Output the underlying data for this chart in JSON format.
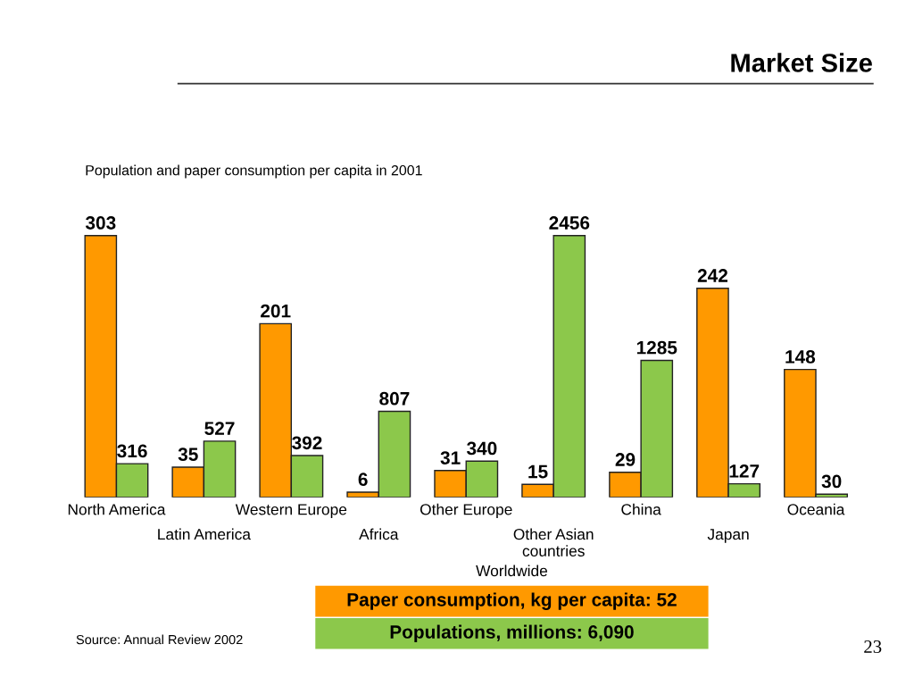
{
  "chart_data": {
    "type": "bar",
    "title": "Market Size",
    "subtitle": "Population and paper consumption per capita in 2001",
    "categories": [
      "North America",
      "Latin America",
      "Western Europe",
      "Africa",
      "Other Europe",
      "Other Asian\ncountries",
      "China",
      "Japan",
      "Oceania"
    ],
    "series": [
      {
        "name": "Paper consumption, kg per capita: 52",
        "color": "#ff9900",
        "values": [
          303,
          35,
          201,
          6,
          31,
          15,
          29,
          242,
          148
        ]
      },
      {
        "name": "Populations, millions: 6,090",
        "color": "#8cc84b",
        "axis": "y2",
        "values": [
          316,
          527,
          392,
          807,
          340,
          2456,
          1285,
          127,
          30
        ]
      }
    ],
    "data_labels": true,
    "legend": "bottom",
    "legend_title": "Worldwide",
    "tick_labels": "x",
    "annotations": [
      "Source: Annual Review 2002",
      "23"
    ]
  }
}
